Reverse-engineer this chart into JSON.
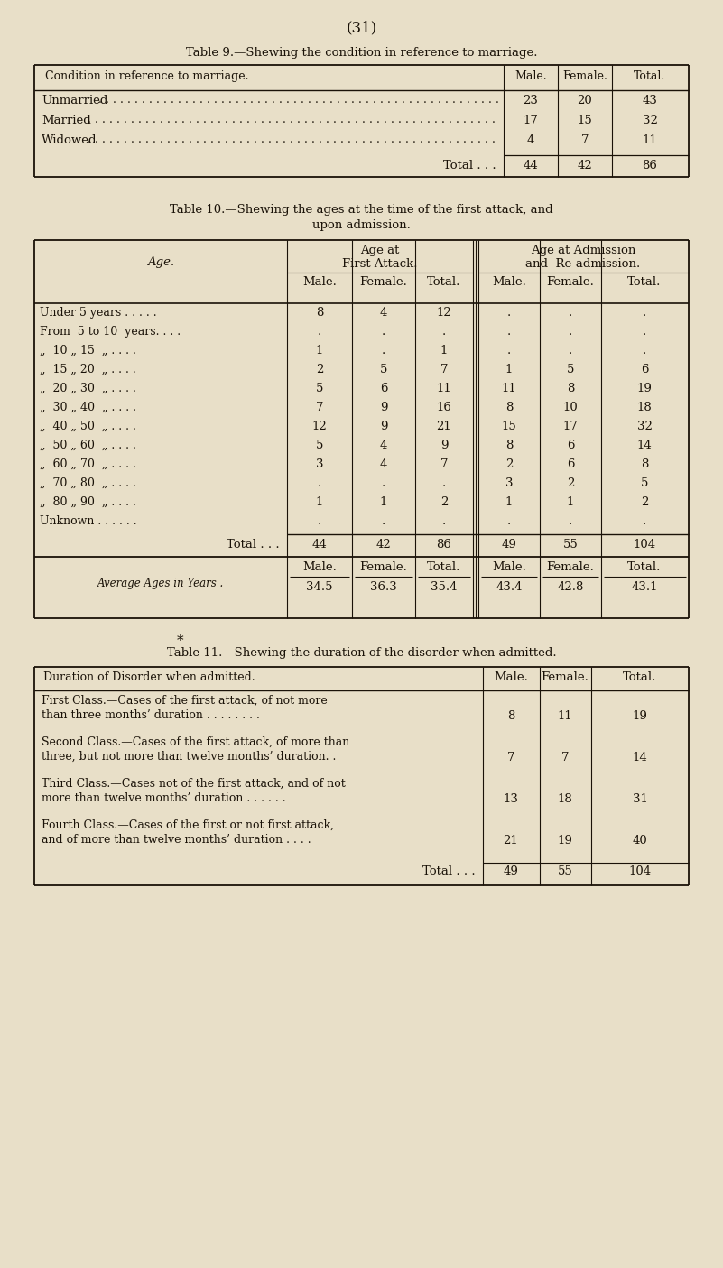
{
  "bg_color": "#e8dfc8",
  "page_number": "(31)",
  "table9": {
    "title": "Table 9.—Shewing the condition in reference to marriage.",
    "col_header": "Condition in reference to marriage.",
    "col_nums": [
      "Male.",
      "Female.",
      "Total."
    ],
    "rows": [
      [
        "Unmarried",
        "23",
        "20",
        "43"
      ],
      [
        "Married",
        "17",
        "15",
        "32"
      ],
      [
        "Widowed",
        "4",
        "7",
        "11"
      ]
    ],
    "total_row": [
      "Total . . .",
      "44",
      "42",
      "86"
    ]
  },
  "table10": {
    "title1": "Table 10.—Shewing the ages at the time of the first attack, and",
    "title2": "upon admission.",
    "age_header": "Age.",
    "group1_header": "Age at\nFirst Attack.",
    "group2_header": "Age at Admission\nand  Re-admission.",
    "sub_headers": [
      "Male.",
      "Female.",
      "Total.",
      "Male.",
      "Female.",
      "Total."
    ],
    "rows": [
      [
        "Under 5 years",
        "8",
        "4",
        "12",
        ".",
        ".",
        "."
      ],
      [
        "From  5 to 10  years.",
        ".",
        ".",
        ".",
        ".",
        ".",
        "."
      ],
      [
        "„  10 „ 15  „",
        "1",
        ".",
        "1",
        ".",
        ".",
        "."
      ],
      [
        "„  15 „ 20  „",
        "2",
        "5",
        "7",
        "1",
        "5",
        "6"
      ],
      [
        "„  20 „ 30  „",
        "5",
        "6",
        "11",
        "11",
        "8",
        "19"
      ],
      [
        "„  30 „ 40  „",
        "7",
        "9",
        "16",
        "8",
        "10",
        "18"
      ],
      [
        "„  40 „ 50  „",
        "12",
        "9",
        "21",
        "15",
        "17",
        "32"
      ],
      [
        "„  50 „ 60  „",
        "5",
        "4",
        "9",
        "8",
        "6",
        "14"
      ],
      [
        "„  60 „ 70  „",
        "3",
        "4",
        "7",
        "2",
        "6",
        "8"
      ],
      [
        "„  70 „ 80  „",
        ".",
        ".",
        ".",
        "3",
        "2",
        "5"
      ],
      [
        "„  80 „ 90  „",
        "1",
        "1",
        "2",
        "1",
        "1",
        "2"
      ],
      [
        "Unknown",
        ".",
        ".",
        ".",
        ".",
        ".",
        "."
      ]
    ],
    "total_row": [
      "Total . . .",
      "44",
      "42",
      "86",
      "49",
      "55",
      "104"
    ],
    "avg_label": "Average Ages in Years .",
    "avg_sub_headers": [
      "Male.",
      "Female.",
      "Total.",
      "Male.",
      "Female.",
      "Total."
    ],
    "avg_values": [
      "34.5",
      "36.3",
      "35.4",
      "43.4",
      "42.8",
      "43.1"
    ]
  },
  "table11": {
    "title": "Table 11.—Shewing the duration of the disorder when admitted.",
    "col_header": "Duration of Disorder when admitted.",
    "col_nums": [
      "Male.",
      "Female.",
      "Total."
    ],
    "rows": [
      [
        "First Class.—Cases of the first attack, of not more\nthan three months’ duration . . . . . . . .",
        "8",
        "11",
        "19"
      ],
      [
        "Second Class.—Cases of the first attack, of more than\nthree, but not more than twelve months’ duration. .",
        "7",
        "7",
        "14"
      ],
      [
        "Third Class.—Cases not of the first attack, and of not\nmore than twelve months’ duration . . . . . .",
        "13",
        "18",
        "31"
      ],
      [
        "Fourth Class.—Cases of the first or not first attack,\nand of more than twelve months’ duration . . . .",
        "21",
        "19",
        "40"
      ]
    ],
    "total_row": [
      "Total . . .",
      "49",
      "55",
      "104"
    ]
  }
}
